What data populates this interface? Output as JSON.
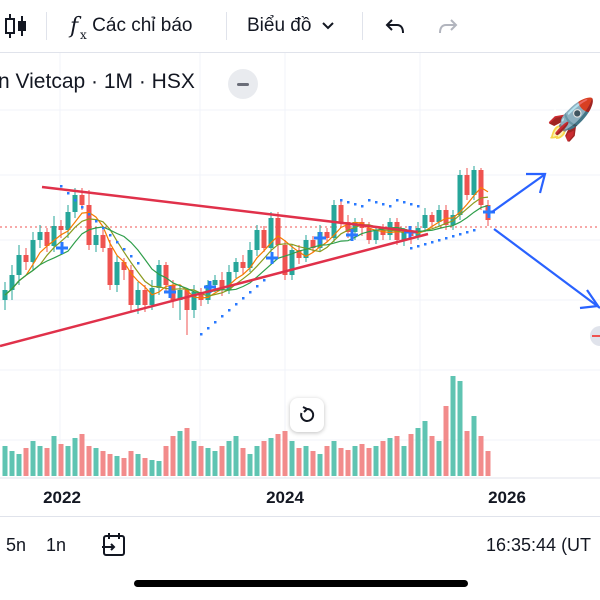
{
  "toolbar": {
    "indicators_label": "Các chỉ báo",
    "chart_type_label": "Biểu đồ",
    "fx_symbol": "f",
    "fx_sub": "x"
  },
  "legend": {
    "title": "n Vietcap · 1M · HSX"
  },
  "chart_data": {
    "type": "candlestick",
    "x_tick_labels": [
      "2022",
      "2024",
      "2026"
    ],
    "colors": {
      "up": "#26a69a",
      "down": "#ef5350",
      "volume_up": "#5fc4b2",
      "volume_down": "#f28b8b",
      "ma_orange": "#f57c00",
      "ma_olive": "#8b9a1e",
      "ma_green": "#2e9e4a",
      "trendline": "#e0314a",
      "projection": "#2962ff",
      "sar": "#2979ff",
      "price_line": "#ef5350"
    },
    "candles_visible": 70,
    "note_values": "relative price levels 0-100"
  },
  "bottom": {
    "ranges": [
      "5n",
      "1n"
    ],
    "clock": "16:35:44 (UT"
  },
  "icons": {
    "candles": "candles-icon",
    "undo": "undo-icon",
    "redo": "redo-icon",
    "reset": "reset-icon",
    "goto_date": "calendar-arrow-icon",
    "collapse": "collapse-legend-icon"
  },
  "decor": {
    "rocket": "🚀"
  }
}
